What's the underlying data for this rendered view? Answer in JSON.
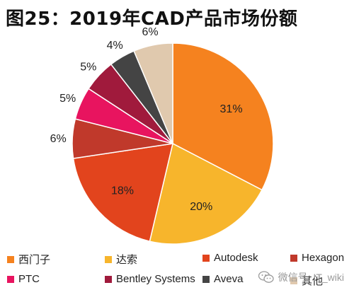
{
  "title": "图25：2019年CAD产品市场份额",
  "watermark": {
    "text": "微信号: IT_wiki",
    "icon": "wechat-icon"
  },
  "chart_data": {
    "type": "pie",
    "title": "图25：2019年CAD产品市场份额",
    "slices": [
      {
        "label": "西门子",
        "value": 31,
        "display": "31%",
        "color": "#F5821F"
      },
      {
        "label": "达索",
        "value": 20,
        "display": "20%",
        "color": "#F7B52C"
      },
      {
        "label": "Autodesk",
        "value": 18,
        "display": "18%",
        "color": "#E2441D"
      },
      {
        "label": "Hexagon",
        "value": 6,
        "display": "6%",
        "color": "#C0392B"
      },
      {
        "label": "PTC",
        "value": 5,
        "display": "5%",
        "color": "#E8145F"
      },
      {
        "label": "Bentley Systems",
        "value": 5,
        "display": "5%",
        "color": "#A01A3C"
      },
      {
        "label": "Aveva",
        "value": 4,
        "display": "4%",
        "color": "#444444"
      },
      {
        "label": "其他",
        "value": 6,
        "display": "6%",
        "color": "#E0C9AE"
      }
    ],
    "legend_position": "bottom"
  }
}
